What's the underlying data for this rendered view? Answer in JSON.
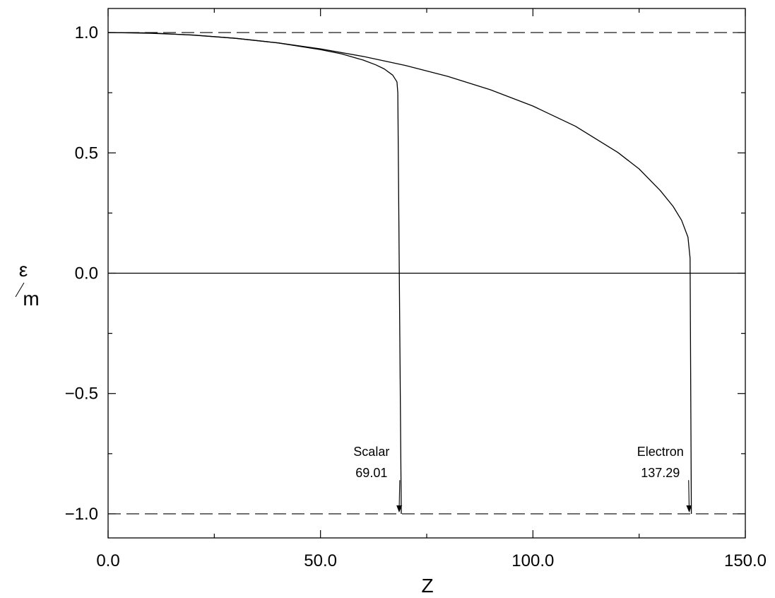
{
  "chart_data": {
    "type": "line",
    "title": "",
    "xlabel": "Z",
    "ylabel_numerator": "ε",
    "ylabel_denominator": "m",
    "xlim": [
      0,
      150
    ],
    "ylim": [
      -1.1,
      1.1
    ],
    "x_ticks": [
      {
        "value": 0,
        "label": "0.0"
      },
      {
        "value": 50,
        "label": "50.0"
      },
      {
        "value": 100,
        "label": "100.0"
      },
      {
        "value": 150,
        "label": "150.0"
      }
    ],
    "x_minor_ticks": [
      25,
      75,
      125
    ],
    "y_ticks": [
      {
        "value": -1.0,
        "label": "−1.0"
      },
      {
        "value": -0.5,
        "label": "−0.5"
      },
      {
        "value": 0.0,
        "label": "0.0"
      },
      {
        "value": 0.5,
        "label": "0.5"
      },
      {
        "value": 1.0,
        "label": "1.0"
      }
    ],
    "y_minor_ticks": [
      -0.75,
      -0.25,
      0.25,
      0.75
    ],
    "grid": false,
    "reference_lines": [
      {
        "y": 1.0,
        "style": "dashed"
      },
      {
        "y": -1.0,
        "style": "dashed"
      },
      {
        "y": 0.0,
        "style": "solid"
      }
    ],
    "series": [
      {
        "x": [
          0,
          10,
          20,
          30,
          40,
          50,
          55,
          60,
          63,
          65,
          67,
          68,
          68.2,
          69.01
        ],
        "y": [
          1.0,
          0.997,
          0.99,
          0.976,
          0.957,
          0.929,
          0.911,
          0.886,
          0.866,
          0.849,
          0.823,
          0.795,
          0.75,
          -1.0
        ]
      },
      {
        "x": [
          0,
          10,
          20,
          30,
          40,
          50,
          60,
          70,
          80,
          90,
          100,
          110,
          120,
          125,
          130,
          133,
          135,
          136.5,
          137,
          137.29
        ],
        "y": [
          1.0,
          0.9987,
          0.9894,
          0.9761,
          0.957,
          0.9322,
          0.901,
          0.8632,
          0.8176,
          0.7622,
          0.6946,
          0.6107,
          0.5017,
          0.4332,
          0.3432,
          0.2776,
          0.2197,
          0.1497,
          0.0625,
          -1.0
        ]
      }
    ],
    "annotations": [
      {
        "label": "Scalar",
        "value": "69.01",
        "point": [
          69.01,
          -1.0
        ],
        "text_at": [
          62,
          -0.76
        ]
      },
      {
        "label": "Electron",
        "value": "137.29",
        "point": [
          137.29,
          -1.0
        ],
        "text_at": [
          130,
          -0.76
        ]
      }
    ]
  }
}
